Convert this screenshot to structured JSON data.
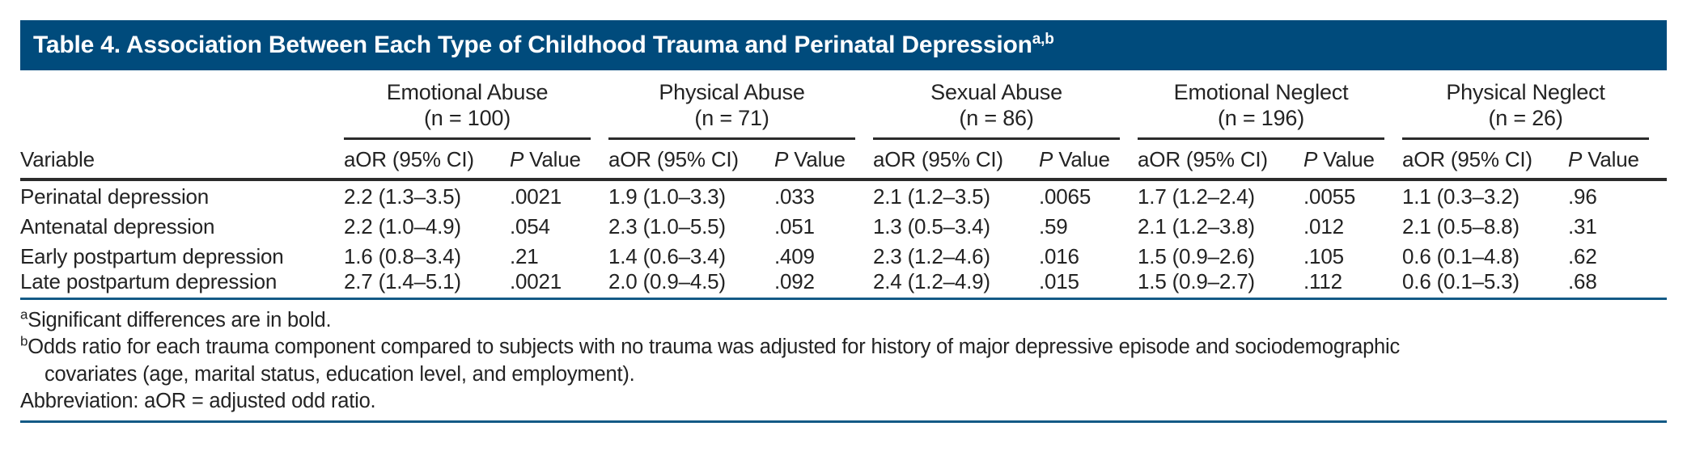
{
  "title": {
    "text": "Table 4. Association Between Each Type of Childhood Trauma and Perinatal Depression",
    "superscript": "a,b"
  },
  "table": {
    "variable_header": "Variable",
    "subheaders": {
      "aor": "aOR (95% CI)",
      "p_italic": "P",
      "p_rest": " Value"
    },
    "groups": [
      {
        "name": "Emotional Abuse",
        "n": "(n = 100)"
      },
      {
        "name": "Physical Abuse",
        "n": "(n = 71)"
      },
      {
        "name": "Sexual Abuse",
        "n": "(n = 86)"
      },
      {
        "name": "Emotional Neglect",
        "n": "(n = 196)"
      },
      {
        "name": "Physical Neglect",
        "n": "(n = 26)"
      }
    ],
    "rows": [
      {
        "label": "Perinatal depression",
        "cells": [
          {
            "aor": "2.2 (1.3–3.5)",
            "p": ".0021",
            "sig": true
          },
          {
            "aor": "1.9 (1.0–3.3)",
            "p": ".033",
            "sig": true
          },
          {
            "aor": "2.1 (1.2–3.5)",
            "p": ".0065",
            "sig": true
          },
          {
            "aor": "1.7 (1.2–2.4)",
            "p": ".0055",
            "sig": true
          },
          {
            "aor": "1.1 (0.3–3.2)",
            "p": ".96",
            "sig": false
          }
        ]
      },
      {
        "label": "Antenatal depression",
        "cells": [
          {
            "aor": "2.2 (1.0–4.9)",
            "p": ".054",
            "sig": false
          },
          {
            "aor": "2.3 (1.0–5.5)",
            "p": ".051",
            "sig": false
          },
          {
            "aor": "1.3 (0.5–3.4)",
            "p": ".59",
            "sig": false
          },
          {
            "aor": "2.1 (1.2–3.8)",
            "p": ".012",
            "sig": true
          },
          {
            "aor": "2.1 (0.5–8.8)",
            "p": ".31",
            "sig": false
          }
        ]
      },
      {
        "label": "Early postpartum depression",
        "cells": [
          {
            "aor": "1.6 (0.8–3.4)",
            "p": ".21",
            "sig": false
          },
          {
            "aor": "1.4 (0.6–3.4)",
            "p": ".409",
            "sig": false
          },
          {
            "aor": "2.3 (1.2–4.6)",
            "p": ".016",
            "sig": true
          },
          {
            "aor": "1.5 (0.9–2.6)",
            "p": ".105",
            "sig": false
          },
          {
            "aor": "0.6 (0.1–4.8)",
            "p": ".62",
            "sig": false
          }
        ]
      },
      {
        "label": "Late postpartum depression",
        "cells": [
          {
            "aor": "2.7 (1.4–5.1)",
            "p": ".0021",
            "sig": true
          },
          {
            "aor": "2.0 (0.9–4.5)",
            "p": ".092",
            "sig": false
          },
          {
            "aor": "2.4 (1.2–4.9)",
            "p": ".015",
            "sig": true
          },
          {
            "aor": "1.5 (0.9–2.7)",
            "p": ".112",
            "sig": false
          },
          {
            "aor": "0.6 (0.1–5.3)",
            "p": ".68",
            "sig": false
          }
        ]
      }
    ]
  },
  "footnotes": {
    "a_marker": "a",
    "a_text": "Significant differences are in bold.",
    "b_marker": "b",
    "b_line1": "Odds ratio for each trauma component compared to subjects with no trauma was adjusted for history of major depressive episode and sociodemographic",
    "b_line2": "covariates (age, marital status, education level, and employment).",
    "abbreviation": "Abbreviation: aOR = adjusted odd ratio."
  },
  "colors": {
    "header_bar": "#004B7C",
    "rule_blue": "#135A86",
    "rule_dark": "#2B2B2B",
    "text": "#232323"
  }
}
